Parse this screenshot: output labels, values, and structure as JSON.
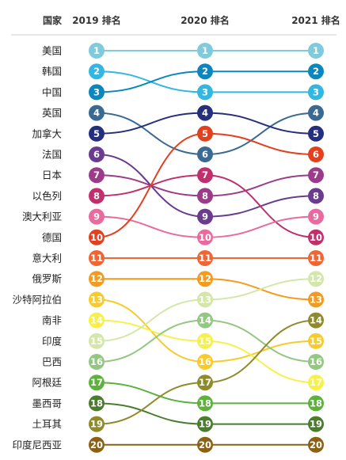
{
  "chart_data": {
    "type": "bump",
    "headers": {
      "country": "国家",
      "columns": [
        "2019 排名",
        "2020 排名",
        "2021 排名"
      ]
    },
    "series": [
      {
        "name": "美国",
        "color": "#7fcbdc",
        "ranks": [
          1,
          1,
          1
        ]
      },
      {
        "name": "韩国",
        "color": "#33b7e0",
        "ranks": [
          2,
          3,
          3
        ]
      },
      {
        "name": "中国",
        "color": "#0c86bf",
        "ranks": [
          3,
          2,
          2
        ]
      },
      {
        "name": "英国",
        "color": "#3a6a93",
        "ranks": [
          4,
          6,
          4
        ]
      },
      {
        "name": "加拿大",
        "color": "#24307e",
        "ranks": [
          5,
          4,
          5
        ]
      },
      {
        "name": "法国",
        "color": "#6a3c90",
        "ranks": [
          6,
          9,
          8
        ]
      },
      {
        "name": "日本",
        "color": "#9b3b89",
        "ranks": [
          7,
          8,
          7
        ]
      },
      {
        "name": "以色列",
        "color": "#c0306c",
        "ranks": [
          8,
          7,
          10
        ]
      },
      {
        "name": "澳大利亚",
        "color": "#e96a9e",
        "ranks": [
          9,
          10,
          9
        ]
      },
      {
        "name": "德国",
        "color": "#e2401e",
        "ranks": [
          10,
          5,
          6
        ]
      },
      {
        "name": "意大利",
        "color": "#ef6533",
        "ranks": [
          11,
          11,
          11
        ]
      },
      {
        "name": "俄罗斯",
        "color": "#f49a1c",
        "ranks": [
          12,
          12,
          13
        ]
      },
      {
        "name": "沙特阿拉伯",
        "color": "#f7cb2c",
        "ranks": [
          13,
          16,
          15
        ]
      },
      {
        "name": "南非",
        "color": "#f8f04a",
        "ranks": [
          14,
          15,
          17
        ]
      },
      {
        "name": "印度",
        "color": "#d3e7a8",
        "ranks": [
          15,
          13,
          12
        ]
      },
      {
        "name": "巴西",
        "color": "#93c782",
        "ranks": [
          16,
          14,
          16
        ]
      },
      {
        "name": "阿根廷",
        "color": "#5cb23c",
        "ranks": [
          17,
          18,
          18
        ]
      },
      {
        "name": "墨西哥",
        "color": "#4b7c2f",
        "ranks": [
          18,
          19,
          19
        ]
      },
      {
        "name": "土耳其",
        "color": "#8f8b2b",
        "ranks": [
          19,
          17,
          14
        ]
      },
      {
        "name": "印度尼西亚",
        "color": "#8b6114",
        "ranks": [
          20,
          20,
          20
        ]
      }
    ],
    "rank_range": [
      1,
      20
    ]
  }
}
